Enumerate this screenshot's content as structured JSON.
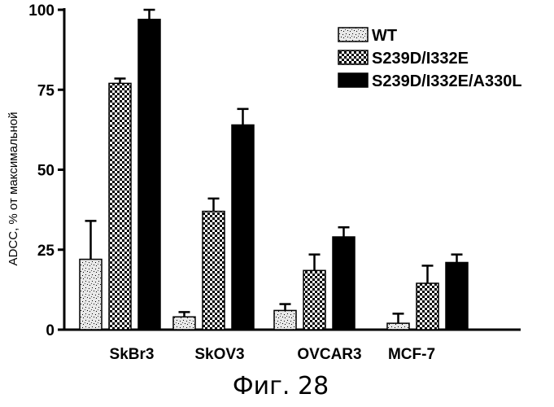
{
  "chart_data": {
    "type": "bar",
    "categories": [
      "SkBr3",
      "SkOV3",
      "OVCAR3",
      "MCF-7"
    ],
    "series": [
      {
        "name": "WT",
        "values": [
          22,
          4,
          6,
          2
        ],
        "errors": [
          12,
          1.5,
          2,
          3
        ],
        "pattern": "speckle"
      },
      {
        "name": "S239D/I332E",
        "values": [
          77,
          37,
          18.5,
          14.5
        ],
        "errors": [
          1.5,
          4,
          5,
          5.5
        ],
        "pattern": "checker"
      },
      {
        "name": "S239D/I332E/A330L",
        "values": [
          97,
          64,
          29,
          21
        ],
        "errors": [
          3,
          5,
          3,
          2.5
        ],
        "pattern": "solid"
      }
    ],
    "yticks": [
      "0",
      "25",
      "50",
      "75",
      "100"
    ],
    "ylim": [
      0,
      100
    ],
    "ylabel": "ADCC, % от максимальной",
    "legend_position": "top-right"
  },
  "caption": "Фиг. 28",
  "colors": {
    "ink": "#000000",
    "background": "#ffffff"
  }
}
